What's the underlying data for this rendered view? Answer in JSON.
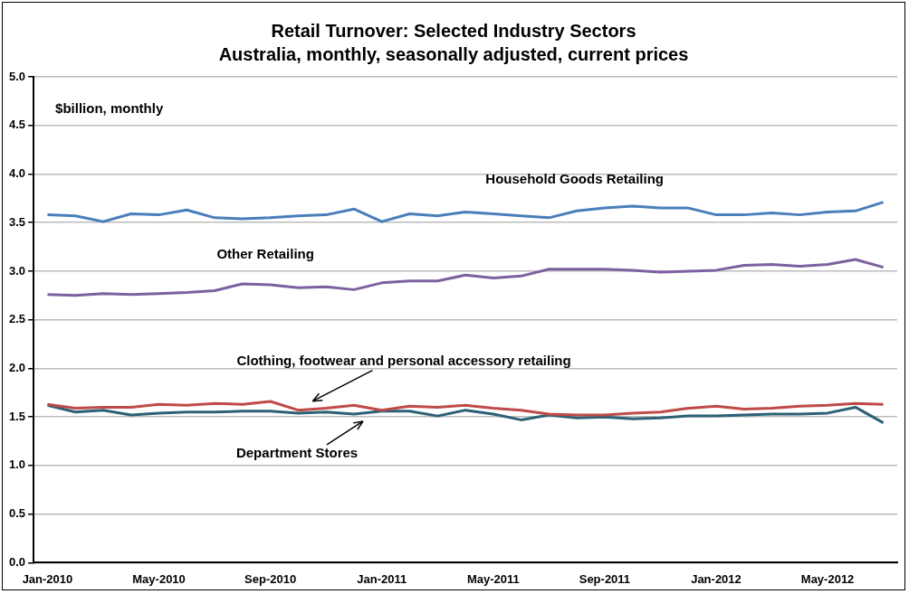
{
  "chart_data": {
    "type": "line",
    "title": "Retail Turnover: Selected Industry Sectors",
    "subtitle": "Australia, monthly, seasonally adjusted, current prices",
    "annotations": [
      "$billion, monthly"
    ],
    "categories": [
      "Jan-2010",
      null,
      null,
      null,
      "May-2010",
      null,
      null,
      null,
      "Sep-2010",
      null,
      null,
      null,
      "Jan-2011",
      null,
      null,
      null,
      "May-2011",
      null,
      null,
      null,
      "Sep-2011",
      null,
      null,
      null,
      "Jan-2012",
      null,
      null,
      null,
      "May-2012",
      null,
      null
    ],
    "series": [
      {
        "name": "Household Goods Retailing",
        "color": "#4a7ebb",
        "values": [
          3.58,
          3.57,
          3.51,
          3.59,
          3.58,
          3.63,
          3.55,
          3.54,
          3.55,
          3.57,
          3.58,
          3.64,
          3.51,
          3.59,
          3.57,
          3.61,
          3.59,
          3.57,
          3.55,
          3.62,
          3.65,
          3.67,
          3.65,
          3.65,
          3.58,
          3.58,
          3.6,
          3.58,
          3.61,
          3.62,
          3.71
        ]
      },
      {
        "name": "Other Retailing",
        "color": "#7d60a0",
        "values": [
          2.76,
          2.75,
          2.77,
          2.76,
          2.77,
          2.78,
          2.8,
          2.87,
          2.86,
          2.83,
          2.84,
          2.81,
          2.88,
          2.9,
          2.9,
          2.96,
          2.93,
          2.95,
          3.02,
          3.02,
          3.02,
          3.01,
          2.99,
          3.0,
          3.01,
          3.06,
          3.07,
          3.05,
          3.07,
          3.12,
          3.04
        ]
      },
      {
        "name": "Clothing, footwear and personal accessory retailing",
        "color": "#be4b48",
        "values": [
          1.63,
          1.59,
          1.6,
          1.6,
          1.63,
          1.62,
          1.64,
          1.63,
          1.66,
          1.57,
          1.59,
          1.62,
          1.57,
          1.61,
          1.6,
          1.62,
          1.59,
          1.57,
          1.53,
          1.52,
          1.52,
          1.54,
          1.55,
          1.59,
          1.61,
          1.58,
          1.59,
          1.61,
          1.62,
          1.64,
          1.63
        ]
      },
      {
        "name": "Department Stores",
        "color": "#2c6175",
        "values": [
          1.62,
          1.55,
          1.57,
          1.52,
          1.54,
          1.55,
          1.55,
          1.56,
          1.56,
          1.54,
          1.55,
          1.53,
          1.56,
          1.56,
          1.51,
          1.57,
          1.53,
          1.47,
          1.52,
          1.49,
          1.5,
          1.48,
          1.49,
          1.51,
          1.51,
          1.52,
          1.53,
          1.53,
          1.54,
          1.6,
          1.44
        ]
      }
    ],
    "ylim": [
      0,
      5
    ],
    "yticks": [
      {
        "value": 0,
        "label": "0.0"
      },
      {
        "value": 0.5,
        "label": "0.5"
      },
      {
        "value": 1,
        "label": "1.0"
      },
      {
        "value": 1.5,
        "label": "1.5"
      },
      {
        "value": 2,
        "label": "2.0"
      },
      {
        "value": 2.5,
        "label": "2.5"
      },
      {
        "value": 3,
        "label": "3.0"
      },
      {
        "value": 3.5,
        "label": "3.5"
      },
      {
        "value": 4,
        "label": "4.0"
      },
      {
        "value": 4.5,
        "label": "4.5"
      },
      {
        "value": 5,
        "label": "5.0"
      }
    ],
    "grid": "y",
    "legend": false,
    "marker": "none",
    "line_style": "solid"
  }
}
